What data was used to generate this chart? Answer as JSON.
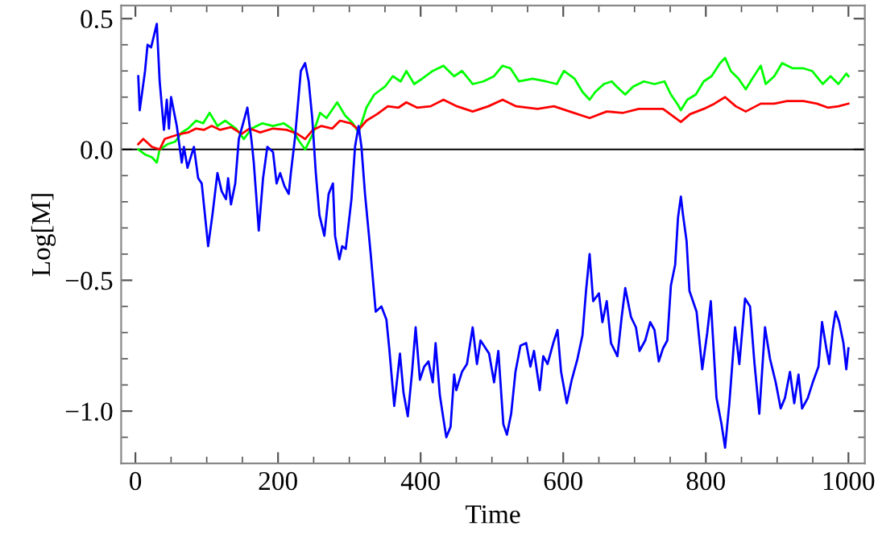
{
  "chart_data": {
    "type": "line",
    "xlabel": "Time",
    "ylabel": "Log[M]",
    "xlim": [
      -20,
      1023
    ],
    "ylim": [
      -1.2,
      0.55
    ],
    "xticks": [
      0,
      {
        "value": 50,
        "label": null
      },
      {
        "value": 100,
        "label": null
      },
      {
        "value": 150,
        "label": null
      },
      200,
      {
        "value": 250,
        "label": null
      },
      {
        "value": 300,
        "label": null
      },
      {
        "value": 350,
        "label": null
      },
      400,
      {
        "value": 450,
        "label": null
      },
      {
        "value": 500,
        "label": null
      },
      {
        "value": 550,
        "label": null
      },
      600,
      {
        "value": 650,
        "label": null
      },
      {
        "value": 700,
        "label": null
      },
      {
        "value": 750,
        "label": null
      },
      800,
      {
        "value": 850,
        "label": null
      },
      {
        "value": 900,
        "label": null
      },
      {
        "value": 950,
        "label": null
      },
      1000
    ],
    "yticks": [
      {
        "value": -1.1,
        "label": null
      },
      {
        "value": -1.0,
        "label": "−1.0"
      },
      {
        "value": -0.9,
        "label": null
      },
      {
        "value": -0.8,
        "label": null
      },
      {
        "value": -0.7,
        "label": null
      },
      {
        "value": -0.6,
        "label": null
      },
      {
        "value": -0.5,
        "label": "−0.5"
      },
      {
        "value": -0.4,
        "label": null
      },
      {
        "value": -0.3,
        "label": null
      },
      {
        "value": -0.2,
        "label": null
      },
      {
        "value": -0.1,
        "label": null
      },
      {
        "value": 0.0,
        "label": "0.0"
      },
      {
        "value": 0.1,
        "label": null
      },
      {
        "value": 0.2,
        "label": null
      },
      {
        "value": 0.3,
        "label": null
      },
      {
        "value": 0.4,
        "label": null
      },
      {
        "value": 0.5,
        "label": "0.5"
      }
    ],
    "grid": false,
    "legend": false,
    "marker": "none",
    "line_style": "solid",
    "ref_lines": [
      {
        "axis": "y",
        "value": 0,
        "color": "#000000"
      }
    ],
    "series": [
      {
        "color": "#00ff00",
        "x": [
          4,
          14,
          23,
          30,
          34,
          45,
          56,
          65,
          74,
          85,
          95,
          104,
          115,
          126,
          141,
          152,
          163,
          178,
          193,
          208,
          219,
          230,
          238,
          249,
          259,
          268,
          283,
          294,
          305,
          313,
          324,
          335,
          350,
          361,
          372,
          380,
          391,
          402,
          417,
          432,
          447,
          458,
          473,
          488,
          503,
          515,
          526,
          538,
          557,
          576,
          591,
          601,
          616,
          627,
          637,
          645,
          657,
          668,
          675,
          687,
          698,
          713,
          728,
          742,
          751,
          761,
          765,
          774,
          786,
          797,
          808,
          820,
          827,
          835,
          846,
          856,
          865,
          877,
          884,
          896,
          907,
          922,
          937,
          949,
          964,
          975,
          986,
          997,
          1000
        ],
        "values": [
          0.0,
          -0.02,
          -0.03,
          -0.05,
          0.0,
          0.02,
          0.03,
          0.065,
          0.08,
          0.11,
          0.1,
          0.14,
          0.09,
          0.11,
          0.08,
          0.04,
          0.08,
          0.1,
          0.09,
          0.1,
          0.08,
          0.03,
          0.0,
          0.06,
          0.14,
          0.12,
          0.18,
          0.13,
          0.1,
          0.065,
          0.16,
          0.21,
          0.24,
          0.28,
          0.26,
          0.3,
          0.25,
          0.27,
          0.3,
          0.32,
          0.28,
          0.3,
          0.25,
          0.26,
          0.28,
          0.32,
          0.31,
          0.26,
          0.27,
          0.26,
          0.25,
          0.3,
          0.27,
          0.22,
          0.19,
          0.22,
          0.25,
          0.26,
          0.24,
          0.21,
          0.24,
          0.26,
          0.25,
          0.26,
          0.21,
          0.17,
          0.15,
          0.19,
          0.21,
          0.26,
          0.28,
          0.33,
          0.35,
          0.3,
          0.27,
          0.23,
          0.27,
          0.32,
          0.25,
          0.28,
          0.33,
          0.31,
          0.31,
          0.3,
          0.25,
          0.28,
          0.25,
          0.29,
          0.28
        ]
      },
      {
        "color": "#ff0000",
        "x": [
          4,
          11,
          23,
          34,
          41,
          52,
          64,
          74,
          85,
          96,
          107,
          119,
          134,
          149,
          160,
          175,
          193,
          212,
          227,
          238,
          249,
          261,
          276,
          287,
          302,
          313,
          324,
          339,
          354,
          369,
          380,
          395,
          414,
          432,
          451,
          473,
          495,
          515,
          534,
          564,
          587,
          609,
          637,
          661,
          684,
          706,
          740,
          755,
          765,
          778,
          797,
          812,
          827,
          842,
          856,
          877,
          896,
          914,
          937,
          956,
          971,
          986,
          1000
        ],
        "values": [
          0.02,
          0.04,
          0.01,
          0.0,
          0.04,
          0.05,
          0.06,
          0.065,
          0.08,
          0.075,
          0.09,
          0.075,
          0.085,
          0.06,
          0.08,
          0.065,
          0.08,
          0.075,
          0.06,
          0.04,
          0.075,
          0.09,
          0.08,
          0.11,
          0.1,
          0.075,
          0.11,
          0.135,
          0.165,
          0.16,
          0.18,
          0.16,
          0.165,
          0.19,
          0.165,
          0.145,
          0.165,
          0.19,
          0.165,
          0.155,
          0.165,
          0.145,
          0.12,
          0.145,
          0.14,
          0.155,
          0.155,
          0.125,
          0.105,
          0.135,
          0.155,
          0.175,
          0.2,
          0.165,
          0.145,
          0.175,
          0.175,
          0.185,
          0.185,
          0.175,
          0.16,
          0.165,
          0.175
        ]
      },
      {
        "color": "#0000ff",
        "x": [
          4,
          6,
          13.5,
          17,
          22,
          30,
          34,
          40,
          44,
          47,
          50,
          58,
          65,
          68,
          73,
          82,
          88,
          93,
          102,
          108,
          115,
          121,
          127,
          130,
          134,
          140,
          145,
          157,
          163,
          166,
          173,
          179,
          185,
          193,
          198,
          203,
          209,
          215,
          218,
          224,
          232,
          238,
          243,
          248,
          253,
          258,
          265,
          271,
          277,
          280,
          286,
          290,
          295,
          303,
          308,
          313,
          317,
          322,
          330,
          337,
          345,
          352,
          356,
          363,
          371,
          376,
          382,
          388,
          393,
          399,
          405,
          411,
          417,
          421,
          427,
          432,
          436,
          442,
          447,
          450,
          458,
          465,
          473,
          479,
          484,
          496,
          503,
          509,
          516,
          521,
          527,
          533,
          540,
          548,
          554,
          559,
          567,
          572,
          578,
          586,
          592,
          597,
          605,
          612,
          620,
          627,
          632,
          637,
          642,
          650,
          655,
          661,
          667,
          676,
          682,
          687,
          695,
          702,
          707,
          715,
          722,
          728,
          734,
          740,
          746,
          751,
          757,
          761,
          765,
          768,
          773,
          777,
          787,
          795,
          802,
          807,
          815,
          822,
          827,
          833,
          841,
          847,
          855,
          862,
          868,
          875,
          883,
          890,
          898,
          905,
          911,
          918,
          924,
          930,
          935,
          943,
          950,
          958,
          963,
          969,
          973,
          978,
          982,
          987,
          993,
          997,
          1000
        ],
        "values": [
          0.28,
          0.15,
          0.3,
          0.4,
          0.39,
          0.48,
          0.26,
          0.075,
          0.19,
          0.08,
          0.2,
          0.09,
          -0.05,
          0.01,
          -0.07,
          0.01,
          -0.11,
          -0.13,
          -0.37,
          -0.25,
          -0.09,
          -0.16,
          -0.19,
          -0.11,
          -0.21,
          -0.13,
          0.04,
          0.16,
          0.03,
          -0.05,
          -0.31,
          -0.11,
          0.01,
          -0.01,
          -0.13,
          -0.09,
          -0.14,
          -0.17,
          -0.09,
          0.05,
          0.3,
          0.33,
          0.26,
          0.12,
          -0.09,
          -0.25,
          -0.33,
          -0.17,
          -0.13,
          -0.33,
          -0.42,
          -0.37,
          -0.38,
          -0.19,
          0.01,
          0.09,
          0.01,
          -0.17,
          -0.4,
          -0.62,
          -0.6,
          -0.65,
          -0.76,
          -0.98,
          -0.78,
          -0.93,
          -1.02,
          -0.85,
          -0.68,
          -0.88,
          -0.83,
          -0.81,
          -0.89,
          -0.74,
          -0.94,
          -1.03,
          -1.1,
          -1.06,
          -0.86,
          -0.92,
          -0.85,
          -0.82,
          -0.68,
          -0.82,
          -0.73,
          -0.78,
          -0.89,
          -0.77,
          -1.05,
          -1.09,
          -1.01,
          -0.85,
          -0.75,
          -0.74,
          -0.83,
          -0.77,
          -0.92,
          -0.79,
          -0.82,
          -0.74,
          -0.69,
          -0.85,
          -0.97,
          -0.88,
          -0.8,
          -0.71,
          -0.54,
          -0.4,
          -0.58,
          -0.55,
          -0.66,
          -0.58,
          -0.74,
          -0.79,
          -0.64,
          -0.53,
          -0.64,
          -0.68,
          -0.77,
          -0.73,
          -0.66,
          -0.69,
          -0.81,
          -0.76,
          -0.73,
          -0.52,
          -0.44,
          -0.26,
          -0.18,
          -0.25,
          -0.35,
          -0.54,
          -0.62,
          -0.84,
          -0.7,
          -0.58,
          -0.95,
          -1.05,
          -1.14,
          -0.97,
          -0.68,
          -0.82,
          -0.57,
          -0.6,
          -0.81,
          -1.01,
          -0.68,
          -0.8,
          -0.89,
          -0.99,
          -0.95,
          -0.85,
          -0.97,
          -0.86,
          -0.99,
          -0.95,
          -0.89,
          -0.83,
          -0.66,
          -0.76,
          -0.82,
          -0.69,
          -0.62,
          -0.66,
          -0.74,
          -0.84,
          -0.76
        ]
      }
    ]
  }
}
